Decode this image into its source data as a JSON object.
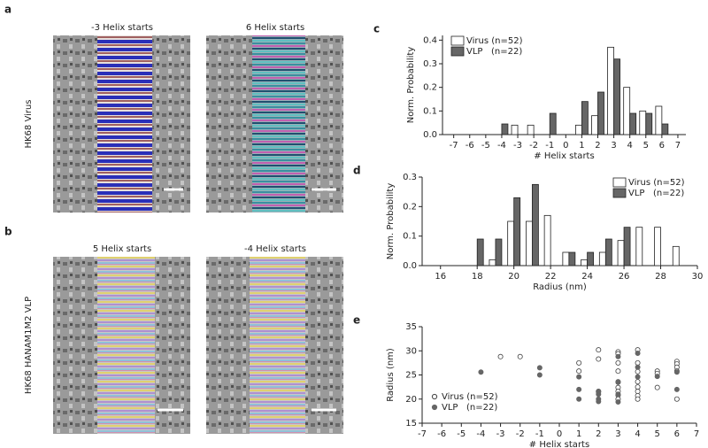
{
  "panels": [
    {
      "letter": "a",
      "side_label": "HK68 Virus",
      "images": [
        {
          "title": "-3 Helix starts"
        },
        {
          "title": "6 Helix starts"
        }
      ]
    },
    {
      "letter": "b",
      "side_label": "HK68 HANAM1M2 VLP",
      "images": [
        {
          "title": "5 Helix starts"
        },
        {
          "title": "-4 Helix starts"
        }
      ]
    }
  ],
  "chart_data": [
    {
      "type": "bar",
      "panel": "c",
      "x_label": "# Helix starts",
      "y_label": "Norm. Probability",
      "x": [
        -7,
        -6,
        -5,
        -4,
        -3,
        -2,
        -1,
        0,
        1,
        2,
        3,
        4,
        5,
        6,
        7
      ],
      "series": [
        {
          "name": "Virus (n=52)",
          "color": "#ffffff",
          "values": [
            0,
            0,
            0,
            0,
            0.04,
            0.04,
            0,
            0,
            0.04,
            0.08,
            0.37,
            0.2,
            0.1,
            0.12,
            0
          ]
        },
        {
          "name": "VLP   (n=22)",
          "color": "#666666",
          "values": [
            0,
            0,
            0,
            0.045,
            0,
            0,
            0.09,
            0,
            0.14,
            0.18,
            0.32,
            0.09,
            0.09,
            0.045,
            0
          ]
        }
      ],
      "xlim": [
        -7.7,
        7.5
      ],
      "xticks": [
        -7,
        -6,
        -5,
        -4,
        -3,
        -2,
        -1,
        0,
        1,
        2,
        3,
        4,
        5,
        6,
        7
      ],
      "ylim": [
        0,
        0.42
      ],
      "yticks": [
        {
          "value": 0,
          "label": "0.0"
        },
        0.1,
        0.2,
        0.3,
        0.4
      ],
      "legend": "upper left"
    },
    {
      "type": "bar",
      "panel": "d",
      "x_label": "Radius (nm)",
      "y_label": "Norm. Probability",
      "x": [
        18,
        19,
        20,
        21,
        22,
        23,
        24,
        25,
        26,
        27,
        28,
        29
      ],
      "series": [
        {
          "name": "Virus (n=52)",
          "color": "#ffffff",
          "values": [
            0,
            0.02,
            0.15,
            0.15,
            0.17,
            0.045,
            0.02,
            0.045,
            0.085,
            0.13,
            0.13,
            0.065
          ]
        },
        {
          "name": "VLP   (n=22)",
          "color": "#666666",
          "values": [
            0.09,
            0.09,
            0.23,
            0.275,
            0,
            0.045,
            0.045,
            0.09,
            0.13,
            0,
            0,
            0
          ]
        }
      ],
      "xlim": [
        15,
        30
      ],
      "xticks": [
        16,
        18,
        20,
        22,
        24,
        26,
        28,
        30
      ],
      "ylim": [
        0,
        0.3
      ],
      "yticks": [
        {
          "value": 0,
          "label": "0.0"
        },
        0.1,
        0.2,
        0.3
      ],
      "legend": "upper right"
    },
    {
      "type": "scatter",
      "panel": "e",
      "x_label": "# Helix starts",
      "y_label": "Radius (nm)",
      "series": [
        {
          "name": "Virus (n=52)",
          "color": "#ffffff",
          "x": [
            -3,
            -2,
            1,
            1,
            2,
            2,
            2,
            3,
            3,
            3,
            3,
            3,
            3,
            3,
            3,
            3,
            4,
            4,
            4,
            4,
            4,
            4,
            4,
            4,
            5,
            5,
            5,
            6,
            6,
            6,
            6,
            6
          ],
          "values": [
            28.8,
            28.8,
            27.5,
            25.8,
            30.2,
            28.3,
            21.6,
            29.8,
            29.4,
            27.5,
            25.8,
            23.5,
            22.4,
            21.6,
            20.8,
            20,
            30.2,
            27.5,
            25.7,
            23.6,
            22.5,
            21.6,
            20.7,
            20,
            25.8,
            25.3,
            22.4,
            27.8,
            27.3,
            26.6,
            25.8,
            20
          ]
        },
        {
          "name": "VLP   (n=22)",
          "color": "#666666",
          "x": [
            -4,
            -1,
            -1,
            1,
            1,
            1,
            2,
            2,
            2,
            2,
            3,
            3,
            3,
            3,
            4,
            4,
            4,
            5,
            6,
            6
          ],
          "values": [
            25.6,
            26.5,
            25,
            24.6,
            22,
            20,
            21.5,
            21,
            20,
            19.5,
            28.8,
            23.6,
            21,
            19.4,
            29.5,
            26.6,
            24.6,
            24.7,
            25.6,
            22
          ]
        }
      ],
      "xlim": [
        -7,
        7
      ],
      "xticks": [
        -7,
        -6,
        -5,
        -4,
        -3,
        -2,
        -1,
        0,
        1,
        2,
        3,
        4,
        5,
        6,
        7
      ],
      "ylim": [
        15,
        35
      ],
      "yticks": [
        15,
        20,
        25,
        30,
        35
      ],
      "legend": "lower left"
    }
  ]
}
